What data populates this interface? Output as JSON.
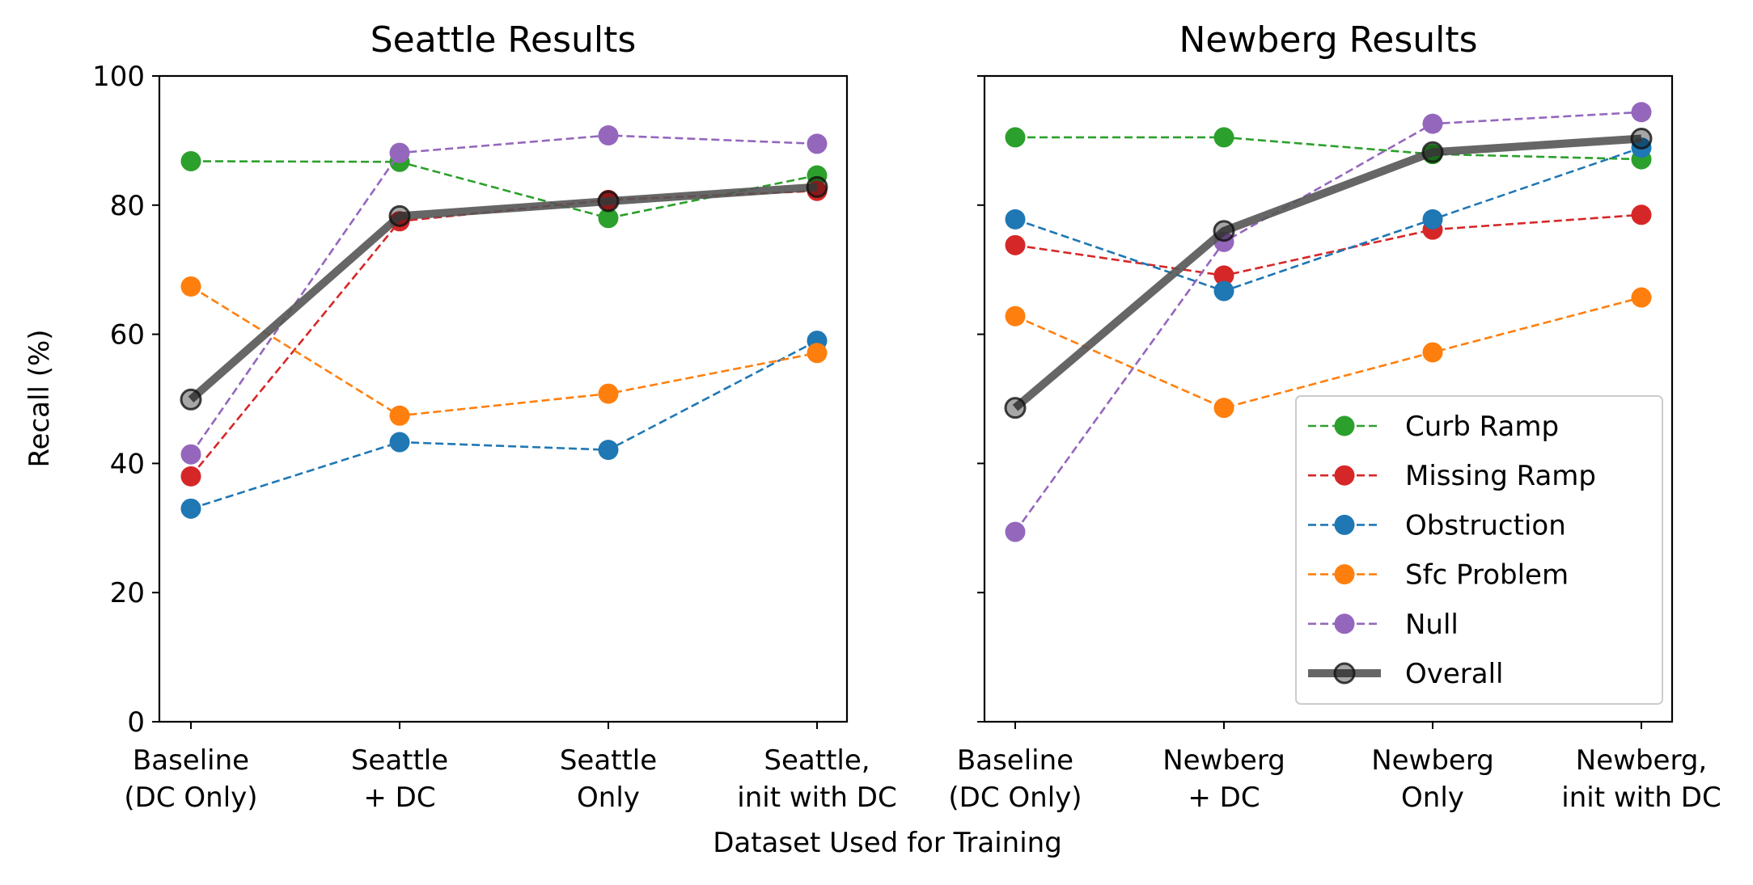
{
  "figure": {
    "xlabel": "Dataset Used for Training",
    "ylabel": "Recall (%)"
  },
  "chart_data": [
    {
      "type": "line",
      "title": "Seattle Results",
      "categories": [
        [
          "Baseline",
          "(DC Only)"
        ],
        [
          "Seattle",
          "+ DC"
        ],
        [
          "Seattle",
          "Only"
        ],
        [
          "Seattle,",
          "init with DC"
        ]
      ],
      "ylim": [
        0,
        100
      ],
      "yticks": [
        "0",
        "20",
        "40",
        "60",
        "80",
        "100"
      ],
      "grid": false,
      "series": [
        {
          "name": "Curb Ramp",
          "color": "#2ca02c",
          "style": "dashed",
          "values": [
            86.8,
            86.7,
            78.0,
            84.6
          ]
        },
        {
          "name": "Missing Ramp",
          "color": "#d62728",
          "style": "dashed",
          "values": [
            38.0,
            77.5,
            80.8,
            82.2
          ]
        },
        {
          "name": "Obstruction",
          "color": "#1f77b4",
          "style": "dashed",
          "values": [
            33.0,
            43.3,
            42.1,
            59.0
          ]
        },
        {
          "name": "Sfc Problem",
          "color": "#ff7f0e",
          "style": "dashed",
          "values": [
            67.4,
            47.4,
            50.8,
            57.1
          ]
        },
        {
          "name": "Null",
          "color": "#9467bd",
          "style": "dashed",
          "values": [
            41.4,
            88.1,
            90.8,
            89.5
          ]
        },
        {
          "name": "Overall",
          "color": "#555555",
          "style": "solid-thick",
          "values": [
            49.9,
            78.3,
            80.6,
            82.8
          ]
        }
      ]
    },
    {
      "type": "line",
      "title": "Newberg Results",
      "categories": [
        [
          "Baseline",
          "(DC Only)"
        ],
        [
          "Newberg",
          "+ DC"
        ],
        [
          "Newberg",
          "Only"
        ],
        [
          "Newberg,",
          "init with DC"
        ]
      ],
      "ylim": [
        0,
        100
      ],
      "grid": false,
      "legend_position": "lower right",
      "series": [
        {
          "name": "Curb Ramp",
          "color": "#2ca02c",
          "style": "dashed",
          "values": [
            90.5,
            90.5,
            87.9,
            87.1
          ]
        },
        {
          "name": "Missing Ramp",
          "color": "#d62728",
          "style": "dashed",
          "values": [
            73.8,
            69.1,
            76.2,
            78.5
          ]
        },
        {
          "name": "Obstruction",
          "color": "#1f77b4",
          "style": "dashed",
          "values": [
            77.8,
            66.7,
            77.8,
            88.9
          ]
        },
        {
          "name": "Sfc Problem",
          "color": "#ff7f0e",
          "style": "dashed",
          "values": [
            62.8,
            48.6,
            57.2,
            65.7
          ]
        },
        {
          "name": "Null",
          "color": "#9467bd",
          "style": "dashed",
          "values": [
            29.4,
            74.3,
            92.6,
            94.4
          ]
        },
        {
          "name": "Overall",
          "color": "#555555",
          "style": "solid-thick",
          "values": [
            48.6,
            76.0,
            88.2,
            90.3
          ]
        }
      ]
    }
  ]
}
